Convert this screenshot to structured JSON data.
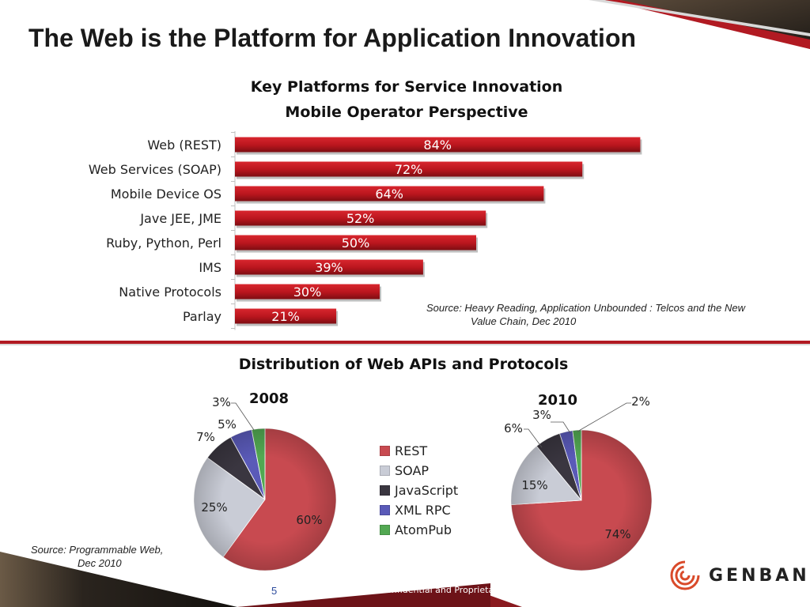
{
  "slide_title": "The Web is the Platform for Application Innovation",
  "colors": {
    "accent": "#b11a22",
    "bar": "#b8151d",
    "bar_dark": "#7d0e13"
  },
  "chart_data": [
    {
      "type": "bar",
      "orientation": "horizontal",
      "title": "Key Platforms for Service Innovation",
      "subtitle": "Mobile Operator Perspective",
      "categories": [
        "Web (REST)",
        "Web Services (SOAP)",
        "Mobile Device OS",
        "Jave JEE, JME",
        "Ruby, Python, Perl",
        "IMS",
        "Native Protocols",
        "Parlay"
      ],
      "values": [
        84,
        72,
        64,
        52,
        50,
        39,
        30,
        21
      ],
      "data_labels": [
        "84%",
        "72%",
        "64%",
        "52%",
        "50%",
        "39%",
        "30%",
        "21%"
      ],
      "xlim": [
        0,
        100
      ],
      "grid": false,
      "source": "Source: Heavy Reading, Application Unbounded : Telcos and the New Value Chain, Dec 2010",
      "source_lines": [
        "Source: Heavy Reading, Application Unbounded : Telcos and the New",
        "Value Chain, Dec 2010"
      ]
    },
    {
      "type": "pie",
      "title": "2008",
      "categories": [
        "REST",
        "SOAP",
        "JavaScript",
        "XML RPC",
        "AtomPub"
      ],
      "values": [
        60,
        25,
        7,
        5,
        3
      ],
      "data_labels": [
        "60%",
        "25%",
        "7%",
        "5%",
        "3%"
      ]
    },
    {
      "type": "pie",
      "title": "2010",
      "categories": [
        "REST",
        "SOAP",
        "JavaScript",
        "XML RPC",
        "AtomPub"
      ],
      "values": [
        74,
        15,
        6,
        3,
        2
      ],
      "data_labels": [
        "74%",
        "15%",
        "6%",
        "3%",
        "2%"
      ]
    }
  ],
  "pies_section_title": "Distribution of Web APIs and Protocols",
  "legend": {
    "items": [
      {
        "label": "REST",
        "color": "#c84a50"
      },
      {
        "label": "SOAP",
        "color": "#c9ccd6"
      },
      {
        "label": "JavaScript",
        "color": "#3a3640"
      },
      {
        "label": "XML RPC",
        "color": "#5a5ab8"
      },
      {
        "label": "AtomPub",
        "color": "#52a852"
      }
    ]
  },
  "pie_source_lines": [
    "Source: Programmable Web,",
    "Dec 2010"
  ],
  "footer": {
    "page_number": "5",
    "confidential": "GENBAND. Confidential and Proprietary",
    "logo_text": "GENBAND"
  }
}
